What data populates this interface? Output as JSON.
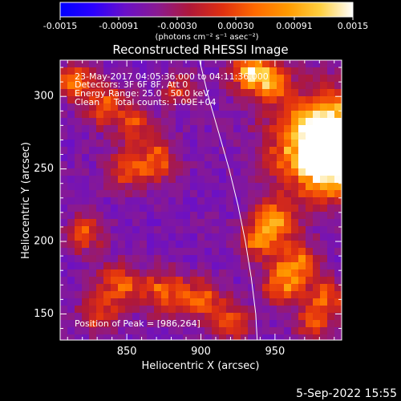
{
  "colorbar": {
    "tick_labels": [
      "-0.0015",
      "-0.00091",
      "-0.00030",
      "0.00030",
      "0.00091",
      "0.0015"
    ],
    "unit_label": "(photons cm⁻² s⁻¹ asec⁻²)",
    "stops": [
      "#0000ff",
      "#2a00ff",
      "#6a10c8",
      "#8a1a90",
      "#b01838",
      "#e03010",
      "#ff6a00",
      "#ff9a00",
      "#ffd040",
      "#ffffff"
    ],
    "range": [
      -0.0015,
      0.0015
    ]
  },
  "header": {
    "timestamp": "5-Sep-2022 15:55"
  },
  "annotations": {
    "time_line": "23-May-2017 04:05:36.000 to 04:11:36.000",
    "detectors_line": "Detectors: 3F 6F 8F, Att 0",
    "energy_line": "Energy Range: 25.0 - 50.0 keV",
    "clean_line": "Clean     Total counts: 1.09E+04",
    "peak_line": "Position of Peak = [986,264]"
  },
  "chart_data": {
    "type": "heatmap",
    "title": "Reconstructed RHESSI Image",
    "xlabel": "Heliocentric X (arcsec)",
    "ylabel": "Heliocentric Y (arcsec)",
    "xlim": [
      805,
      995
    ],
    "ylim": [
      132,
      325
    ],
    "x_ticks": [
      850,
      900,
      950
    ],
    "y_ticks": [
      150,
      200,
      250,
      300
    ],
    "x_tick_labels": [
      "850",
      "900",
      "950"
    ],
    "y_tick_labels": [
      "150",
      "200",
      "250",
      "300"
    ],
    "peak": [
      986,
      264
    ],
    "limb_curve": [
      [
        899,
        325
      ],
      [
        905,
        300
      ],
      [
        912,
        275
      ],
      [
        919,
        250
      ],
      [
        925,
        225
      ],
      [
        930,
        200
      ],
      [
        934,
        175
      ],
      [
        937,
        150
      ],
      [
        938,
        132
      ]
    ],
    "sources": [
      {
        "x": 990,
        "y": 263,
        "amp": 1.0,
        "r": 16
      },
      {
        "x": 983,
        "y": 268,
        "amp": 0.55,
        "r": 24
      },
      {
        "x": 933,
        "y": 316,
        "amp": 0.55,
        "r": 9
      },
      {
        "x": 948,
        "y": 310,
        "amp": 0.45,
        "r": 8
      },
      {
        "x": 815,
        "y": 310,
        "amp": 0.4,
        "r": 8
      },
      {
        "x": 835,
        "y": 295,
        "amp": 0.35,
        "r": 10
      },
      {
        "x": 855,
        "y": 280,
        "amp": 0.3,
        "r": 9
      },
      {
        "x": 870,
        "y": 255,
        "amp": 0.35,
        "r": 10
      },
      {
        "x": 850,
        "y": 250,
        "amp": 0.3,
        "r": 9
      },
      {
        "x": 885,
        "y": 305,
        "amp": 0.25,
        "r": 8
      },
      {
        "x": 822,
        "y": 205,
        "amp": 0.3,
        "r": 9
      },
      {
        "x": 950,
        "y": 215,
        "amp": 0.4,
        "r": 10
      },
      {
        "x": 940,
        "y": 200,
        "amp": 0.38,
        "r": 9
      },
      {
        "x": 965,
        "y": 185,
        "amp": 0.42,
        "r": 10
      },
      {
        "x": 955,
        "y": 170,
        "amp": 0.4,
        "r": 9
      },
      {
        "x": 985,
        "y": 160,
        "amp": 0.35,
        "r": 9
      },
      {
        "x": 975,
        "y": 145,
        "amp": 0.3,
        "r": 8
      },
      {
        "x": 845,
        "y": 170,
        "amp": 0.35,
        "r": 10
      },
      {
        "x": 875,
        "y": 165,
        "amp": 0.38,
        "r": 10
      },
      {
        "x": 900,
        "y": 160,
        "amp": 0.4,
        "r": 9
      },
      {
        "x": 920,
        "y": 145,
        "amp": 0.35,
        "r": 9
      },
      {
        "x": 830,
        "y": 150,
        "amp": 0.28,
        "r": 9
      }
    ]
  }
}
